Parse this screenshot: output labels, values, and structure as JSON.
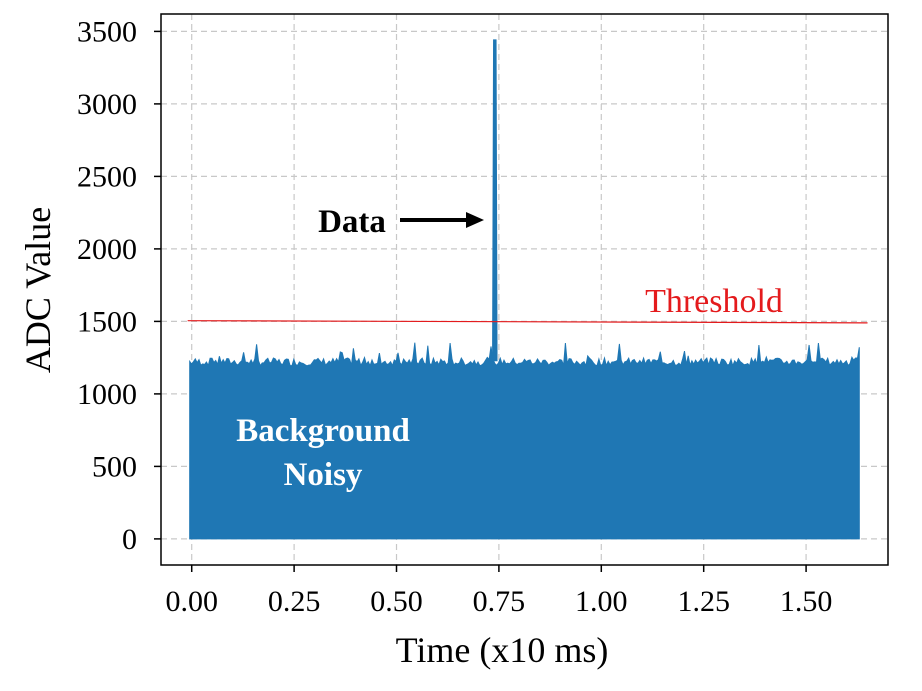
{
  "chart_data": {
    "type": "area",
    "title": "",
    "xlabel": "Time (x10 ms)",
    "ylabel": "ADC Value",
    "xlim": [
      -0.075,
      1.7
    ],
    "ylim": [
      -180,
      3620
    ],
    "x_ticks": [
      0.0,
      0.25,
      0.5,
      0.75,
      1.0,
      1.25,
      1.5
    ],
    "x_tick_labels": [
      "0.00",
      "0.25",
      "0.50",
      "0.75",
      "1.00",
      "1.25",
      "1.50"
    ],
    "y_ticks": [
      0,
      500,
      1000,
      1500,
      2000,
      2500,
      3000,
      3500
    ],
    "y_tick_labels": [
      "0",
      "500",
      "1000",
      "1500",
      "2000",
      "2500",
      "3000",
      "3500"
    ],
    "grid": true,
    "series": [
      {
        "name": "",
        "color": "#1f77b4",
        "x_range": [
          -0.005,
          1.63
        ],
        "baseline": 0,
        "noise_level_min": 1170,
        "noise_level_max": 1360,
        "noise_level_typical": 1230,
        "spike": {
          "x": 0.74,
          "y": 3440
        }
      }
    ],
    "threshold": {
      "label": "Threshold",
      "color": "#e41a1c",
      "x_range": [
        -0.01,
        1.65
      ],
      "y_start": 1505,
      "y_end": 1490
    },
    "annotations": [
      {
        "text": "Data",
        "color": "#000000",
        "arrow": true,
        "points_to": {
          "x": 0.7,
          "y": 2160
        }
      },
      {
        "text_lines": [
          "Background",
          "Noisy"
        ],
        "color": "#ffffff"
      }
    ]
  }
}
